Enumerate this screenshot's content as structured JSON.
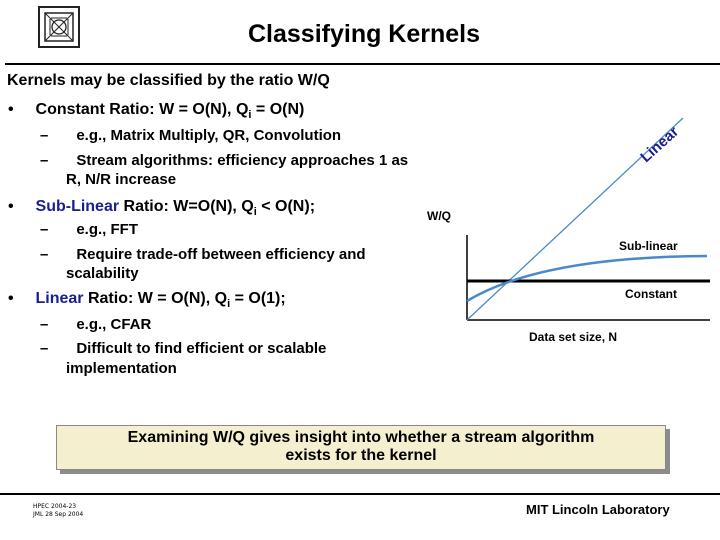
{
  "header": {
    "title": "Classifying Kernels"
  },
  "intro": "Kernels may be classified by the ratio W/Q",
  "bullets": [
    {
      "symbol": "•",
      "lead": "Constant Ratio: W = O(N), Q",
      "sub": "i",
      "rest": " = O(N)",
      "items": [
        "e.g., Matrix Multiply, QR, Convolution",
        "Stream algorithms: efficiency approaches 1 as",
        "R, N/R increase"
      ]
    },
    {
      "symbol": "•",
      "colored": "Sub-Linear",
      "lead": " Ratio: W=O(N), Q",
      "sub": "i",
      "rest": " < O(N);",
      "items": [
        "e.g., FFT",
        "Require trade-off between efficiency and",
        "scalability"
      ]
    },
    {
      "symbol": "•",
      "colored": "Linear",
      "lead": " Ratio: W = O(N), Q",
      "sub": "i",
      "rest": " = O(1);",
      "items": [
        "e.g., CFAR",
        "Difficult to find efficient or scalable",
        "implementation"
      ]
    }
  ],
  "dash_symbol": "–",
  "chart_labels": {
    "linear": "Linear",
    "ylabel": "W/Q",
    "sublinear": "Sub-linear",
    "constant": "Constant",
    "xlabel": "Data set size, N"
  },
  "insight": {
    "line1": "Examining W/Q gives insight into whether a stream algorithm",
    "line2": "exists for the kernel"
  },
  "footer": {
    "left_line1": "HPEC 2004-23",
    "left_line2": "JML 28 Sep 2004",
    "right": "MIT Lincoln Laboratory"
  },
  "colors": {
    "accent_blue": "#1a1f8a",
    "sublinear_curve": "#4a88cc",
    "insight_bg": "#f4f0cf"
  }
}
